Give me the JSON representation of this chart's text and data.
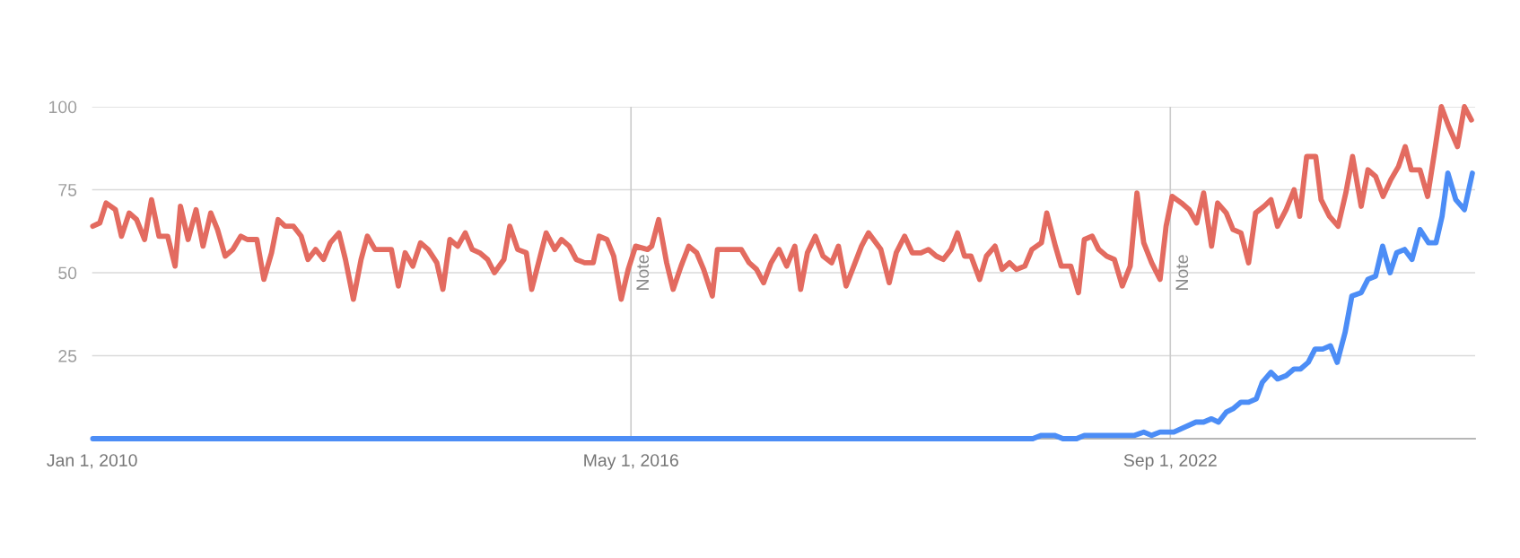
{
  "chart_data": {
    "type": "line",
    "xlim": [
      "2010-01-01",
      "2026-04-01"
    ],
    "xticks": [
      {
        "value": "2010-01-01",
        "label": "Jan 1, 2010"
      },
      {
        "value": "2016-05-01",
        "label": "May 1, 2016"
      },
      {
        "value": "2022-09-01",
        "label": "Sep 1, 2022"
      }
    ],
    "ylim": [
      0,
      100
    ],
    "yticks": [
      25,
      50,
      75,
      100
    ],
    "grid": "y",
    "marker": "none",
    "line_style": "solid",
    "ref_lines": [
      {
        "axis": "x",
        "value": "2016-05-01",
        "label": "Note",
        "color": "#cccccc"
      },
      {
        "axis": "x",
        "value": "2022-09-01",
        "label": "Note",
        "color": "#cccccc"
      }
    ],
    "series": [
      {
        "color": "#e36b60",
        "x": [
          "2010-01-04",
          "2010-02-03",
          "2010-03-02",
          "2010-04-11",
          "2010-05-07",
          "2010-06-09",
          "2010-07-11",
          "2010-08-14",
          "2010-09-13",
          "2010-10-15",
          "2010-11-21",
          "2010-12-23",
          "2011-01-15",
          "2011-02-17",
          "2011-03-23",
          "2011-04-22",
          "2011-05-25",
          "2011-06-23",
          "2011-07-26",
          "2011-08-28",
          "2011-10-01",
          "2011-10-29",
          "2011-12-09",
          "2012-01-08",
          "2012-02-10",
          "2012-03-09",
          "2012-04-08",
          "2012-05-14",
          "2012-06-16",
          "2012-07-15",
          "2012-08-17",
          "2012-09-20",
          "2012-10-19",
          "2012-11-25",
          "2012-12-23",
          "2013-01-26",
          "2013-02-28",
          "2013-03-27",
          "2013-04-29",
          "2013-07-08",
          "2013-08-07",
          "2013-09-05",
          "2013-10-08",
          "2013-11-10",
          "2013-12-13",
          "2014-01-19",
          "2014-02-14",
          "2014-03-16",
          "2014-04-19",
          "2014-05-21",
          "2014-06-20",
          "2014-07-22",
          "2014-08-25",
          "2014-09-23",
          "2014-11-03",
          "2014-11-28",
          "2015-01-01",
          "2015-02-07",
          "2015-03-02",
          "2015-04-04",
          "2015-05-03",
          "2015-06-09",
          "2015-07-08",
          "2015-08-10",
          "2015-09-09",
          "2015-10-15",
          "2015-11-21",
          "2015-12-16",
          "2016-01-19",
          "2016-02-17",
          "2016-03-20",
          "2016-04-19",
          "2016-05-21",
          "2016-07-11",
          "2016-07-29",
          "2016-08-28",
          "2016-10-01",
          "2016-10-29",
          "2016-12-02",
          "2017-01-04",
          "2017-02-07",
          "2017-03-09",
          "2017-04-15",
          "2017-05-07",
          "2017-08-17",
          "2017-09-20",
          "2017-10-22",
          "2017-11-21",
          "2017-12-23",
          "2018-01-26",
          "2018-02-28",
          "2018-04-04",
          "2018-04-29",
          "2018-05-28",
          "2018-07-01",
          "2018-08-03",
          "2018-09-09",
          "2018-10-08",
          "2018-11-10",
          "2018-12-13",
          "2019-01-15",
          "2019-02-14",
          "2019-04-08",
          "2019-05-14",
          "2019-06-13",
          "2019-07-19",
          "2019-08-21",
          "2019-09-27",
          "2019-10-29",
          "2019-12-02",
          "2020-01-01",
          "2020-02-03",
          "2020-03-02",
          "2020-04-01",
          "2020-04-29",
          "2020-06-05",
          "2020-07-04",
          "2020-08-10",
          "2020-09-09",
          "2020-10-11",
          "2020-11-10",
          "2020-12-16",
          "2021-01-15",
          "2021-02-25",
          "2021-03-20",
          "2021-04-26",
          "2021-05-21",
          "2021-07-01",
          "2021-08-03",
          "2021-08-28",
          "2021-10-01",
          "2021-10-29",
          "2021-12-02",
          "2022-01-04",
          "2022-02-07",
          "2022-03-13",
          "2022-04-11",
          "2022-05-10",
          "2022-06-13",
          "2022-07-19",
          "2022-08-14",
          "2022-09-09",
          "2022-10-19",
          "2022-11-21",
          "2022-12-23",
          "2023-01-22",
          "2023-02-25",
          "2023-03-23",
          "2023-04-29",
          "2023-05-28",
          "2023-07-01",
          "2023-08-03",
          "2023-09-02",
          "2023-10-08",
          "2023-11-07",
          "2023-12-05",
          "2024-01-11",
          "2024-02-14",
          "2024-03-09",
          "2024-04-08",
          "2024-05-17",
          "2024-06-09",
          "2024-07-15",
          "2024-08-21",
          "2024-09-23",
          "2024-10-22",
          "2024-11-28",
          "2024-12-27",
          "2025-01-29",
          "2025-03-02",
          "2025-04-04",
          "2025-05-07",
          "2025-06-05",
          "2025-07-01",
          "2025-08-07",
          "2025-09-09",
          "2025-10-08",
          "2025-11-07",
          "2025-12-09",
          "2026-01-15",
          "2026-02-14",
          "2026-03-16"
        ],
        "values": [
          64,
          65,
          71,
          69,
          61,
          68,
          66,
          60,
          72,
          61,
          61,
          52,
          70,
          60,
          69,
          58,
          68,
          63,
          55,
          57,
          61,
          60,
          60,
          48,
          56,
          66,
          64,
          64,
          61,
          54,
          57,
          54,
          59,
          62,
          54,
          42,
          54,
          61,
          57,
          57,
          46,
          56,
          52,
          59,
          57,
          53,
          45,
          60,
          58,
          62,
          57,
          56,
          54,
          50,
          54,
          64,
          57,
          56,
          45,
          54,
          62,
          57,
          60,
          58,
          54,
          53,
          53,
          61,
          60,
          55,
          42,
          51,
          58,
          57,
          58,
          66,
          53,
          45,
          52,
          58,
          56,
          51,
          43,
          57,
          57,
          53,
          51,
          47,
          53,
          57,
          52,
          58,
          45,
          56,
          61,
          55,
          53,
          58,
          46,
          52,
          58,
          62,
          57,
          47,
          56,
          61,
          56,
          56,
          57,
          55,
          54,
          57,
          62,
          55,
          55,
          48,
          55,
          58,
          51,
          53,
          51,
          52,
          57,
          59,
          68,
          58,
          52,
          52,
          44,
          60,
          61,
          57,
          55,
          54,
          46,
          52,
          74,
          59,
          53,
          48,
          64,
          73,
          71,
          69,
          65,
          74,
          58,
          71,
          68,
          63,
          62,
          53,
          68,
          70,
          72,
          64,
          69,
          75,
          67,
          85,
          85,
          72,
          67,
          64,
          74,
          85,
          70,
          81,
          79,
          73,
          78,
          82,
          88,
          81,
          81,
          73,
          86,
          100,
          94,
          88,
          100,
          96
        ]
      },
      {
        "color": "#4c8df6",
        "x": [
          "2010-01-04",
          "2021-01-19",
          "2021-02-25",
          "2021-04-22",
          "2021-05-28",
          "2021-07-26",
          "2021-08-28",
          "2022-04-01",
          "2022-05-10",
          "2022-06-13",
          "2022-07-19",
          "2022-09-16",
          "2022-12-20",
          "2023-01-22",
          "2023-02-25",
          "2023-03-27",
          "2023-04-29",
          "2023-05-28",
          "2023-07-01",
          "2023-08-03",
          "2023-09-05",
          "2023-10-01",
          "2023-11-07",
          "2023-12-05",
          "2024-01-11",
          "2024-02-14",
          "2024-03-13",
          "2024-04-15",
          "2024-05-14",
          "2024-06-16",
          "2024-07-19",
          "2024-08-17",
          "2024-09-20",
          "2024-10-19",
          "2024-11-28",
          "2024-12-27",
          "2025-01-29",
          "2025-02-28",
          "2025-04-01",
          "2025-04-29",
          "2025-06-02",
          "2025-07-04",
          "2025-08-07",
          "2025-09-13",
          "2025-10-15",
          "2025-11-10",
          "2025-12-05",
          "2026-01-08",
          "2026-02-14",
          "2026-03-20"
        ],
        "values": [
          0,
          0,
          1,
          1,
          0,
          0,
          1,
          1,
          2,
          1,
          2,
          2,
          5,
          5,
          6,
          5,
          8,
          9,
          11,
          11,
          12,
          17,
          20,
          18,
          19,
          21,
          21,
          23,
          27,
          27,
          28,
          23,
          32,
          43,
          44,
          48,
          49,
          58,
          50,
          56,
          57,
          54,
          63,
          59,
          59,
          67,
          80,
          72,
          69,
          80
        ]
      }
    ]
  }
}
